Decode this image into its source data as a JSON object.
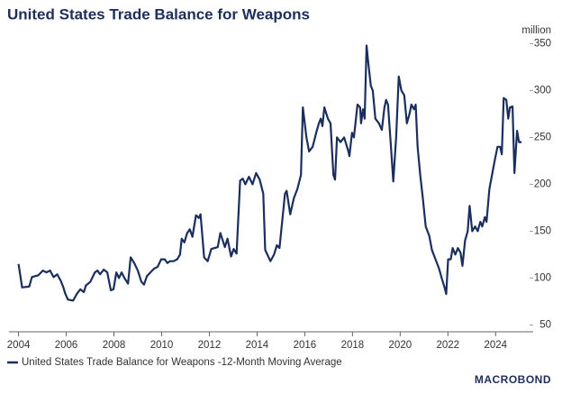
{
  "chart_data": {
    "type": "line",
    "title": "United States Trade Balance for Weapons",
    "y_axis_label": "million",
    "logo": "MACROBOND",
    "x": [
      2004,
      2004.15,
      2004.45,
      2004.56,
      2004.83,
      2005.02,
      2005.17,
      2005.32,
      2005.47,
      2005.62,
      2005.77,
      2005.88,
      2005.95,
      2006.07,
      2006.29,
      2006.44,
      2006.59,
      2006.74,
      2006.82,
      2007.01,
      2007.2,
      2007.31,
      2007.42,
      2007.57,
      2007.72,
      2007.87,
      2007.98,
      2008.1,
      2008.21,
      2008.32,
      2008.44,
      2008.59,
      2008.7,
      2008.85,
      2009,
      2009.15,
      2009.26,
      2009.38,
      2009.53,
      2009.68,
      2009.83,
      2009.98,
      2010.13,
      2010.24,
      2010.35,
      2010.5,
      2010.65,
      2010.77,
      2010.84,
      2010.95,
      2011.07,
      2011.18,
      2011.29,
      2011.44,
      2011.56,
      2011.63,
      2011.78,
      2011.93,
      2012.08,
      2012.35,
      2012.46,
      2012.65,
      2012.76,
      2012.91,
      2013.02,
      2013.14,
      2013.29,
      2013.4,
      2013.51,
      2013.66,
      2013.81,
      2013.96,
      2014.11,
      2014.26,
      2014.34,
      2014.56,
      2014.71,
      2014.83,
      2014.94,
      2015.17,
      2015.24,
      2015.39,
      2015.54,
      2015.69,
      2015.84,
      2015.92,
      2016.07,
      2016.18,
      2016.33,
      2016.48,
      2016.59,
      2016.67,
      2016.74,
      2016.82,
      2016.97,
      2017.08,
      2017.2,
      2017.27,
      2017.35,
      2017.5,
      2017.65,
      2017.83,
      2017.87,
      2017.98,
      2018.06,
      2018.21,
      2018.32,
      2018.36,
      2018.44,
      2018.51,
      2018.59,
      2018.66,
      2018.77,
      2018.85,
      2018.96,
      2019.11,
      2019.23,
      2019.34,
      2019.41,
      2019.49,
      2019.64,
      2019.71,
      2019.83,
      2019.94,
      2020.05,
      2020.17,
      2020.28,
      2020.39,
      2020.47,
      2020.58,
      2020.65,
      2020.73,
      2020.84,
      2020.95,
      2021.07,
      2021.22,
      2021.33,
      2021.48,
      2021.63,
      2021.74,
      2021.86,
      2021.93,
      2022.01,
      2022.12,
      2022.2,
      2022.31,
      2022.42,
      2022.53,
      2022.61,
      2022.72,
      2022.83,
      2022.91,
      2023.02,
      2023.14,
      2023.25,
      2023.36,
      2023.44,
      2023.55,
      2023.62,
      2023.74,
      2023.85,
      2023.96,
      2024.08,
      2024.19,
      2024.26,
      2024.34,
      2024.45,
      2024.53,
      2024.6,
      2024.71,
      2024.79,
      2024.9,
      2024.98,
      2025.09
    ],
    "series": [
      {
        "name": "United States Trade Balance for Weapons -12-Month Moving Average",
        "color": "#1b2f5e",
        "values": [
          115,
          90,
          91,
          101,
          103,
          108,
          106,
          108,
          101,
          104,
          97,
          90,
          84,
          77,
          76,
          83,
          88,
          85,
          92,
          96,
          106,
          108,
          104,
          109,
          106,
          87,
          88,
          106,
          100,
          106,
          100,
          94,
          122,
          116,
          108,
          96,
          93,
          102,
          106,
          110,
          112,
          120,
          120,
          116,
          118,
          118,
          120,
          125,
          142,
          138,
          148,
          152,
          144,
          167,
          164,
          168,
          122,
          118,
          131,
          133,
          148,
          133,
          142,
          123,
          131,
          126,
          204,
          206,
          200,
          208,
          200,
          212,
          205,
          190,
          130,
          118,
          125,
          135,
          132,
          190,
          193,
          168,
          185,
          195,
          210,
          282,
          250,
          235,
          240,
          255,
          265,
          270,
          262,
          282,
          270,
          265,
          210,
          205,
          250,
          245,
          250,
          235,
          230,
          255,
          250,
          285,
          282,
          265,
          280,
          270,
          348,
          330,
          305,
          300,
          270,
          265,
          258,
          282,
          290,
          285,
          230,
          203,
          250,
          315,
          300,
          295,
          265,
          275,
          285,
          280,
          285,
          240,
          210,
          185,
          155,
          145,
          130,
          120,
          110,
          100,
          90,
          83,
          120,
          120,
          132,
          125,
          132,
          127,
          113,
          140,
          150,
          177,
          150,
          155,
          150,
          160,
          155,
          165,
          160,
          195,
          210,
          225,
          240,
          240,
          232,
          292,
          290,
          270,
          282,
          283,
          212,
          257,
          245,
          245
        ]
      }
    ],
    "xlim": [
      2003.6,
      2025.5
    ],
    "xticks": [
      2004,
      2006,
      2008,
      2010,
      2012,
      2014,
      2016,
      2018,
      2020,
      2022,
      2024
    ],
    "ylim": [
      35,
      360
    ],
    "yticks": [
      50,
      100,
      150,
      200,
      250,
      300,
      350
    ],
    "grid": false,
    "legend": "bottom-left"
  }
}
